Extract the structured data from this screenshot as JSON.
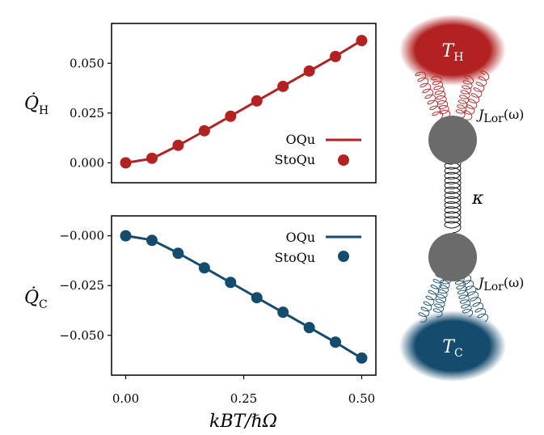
{
  "chart_data": [
    {
      "type": "line",
      "ylabel": "Q̇",
      "ylabel_sub": "H",
      "ylim": [
        -0.01,
        0.07
      ],
      "xlim": [
        -0.03,
        0.53
      ],
      "yticks": [
        0.0,
        0.025,
        0.05
      ],
      "ytick_labels": [
        "0.000",
        "0.025",
        "0.050"
      ],
      "color": "#b22222",
      "series": [
        {
          "name": "OQu",
          "kind": "line",
          "x": [
            0.0,
            0.0556,
            0.1111,
            0.1667,
            0.2222,
            0.2778,
            0.3333,
            0.3889,
            0.4444,
            0.5
          ],
          "values": [
            0.0,
            0.0021,
            0.0087,
            0.016,
            0.0235,
            0.031,
            0.0385,
            0.046,
            0.0535,
            0.0615
          ]
        },
        {
          "name": "StoQu",
          "kind": "marker",
          "x": [
            0.0,
            0.0556,
            0.1111,
            0.1667,
            0.2222,
            0.2778,
            0.3333,
            0.3889,
            0.4444,
            0.5
          ],
          "values": [
            0.0,
            0.0023,
            0.0088,
            0.0161,
            0.0234,
            0.0311,
            0.0384,
            0.0461,
            0.0534,
            0.0614
          ]
        }
      ],
      "legend": "right"
    },
    {
      "type": "line",
      "ylabel": "Q̇",
      "ylabel_sub": "C",
      "ylim": [
        -0.07,
        0.01
      ],
      "xlim": [
        -0.03,
        0.53
      ],
      "yticks": [
        0.0,
        -0.025,
        -0.05
      ],
      "ytick_labels": [
        "−0.000",
        "−0.025",
        "−0.050"
      ],
      "xticks": [
        0.0,
        0.25,
        0.5
      ],
      "xtick_labels": [
        "0.00",
        "0.25",
        "0.50"
      ],
      "xlabel": "kBT/ℏΩ",
      "color": "#154c6e",
      "series": [
        {
          "name": "OQu",
          "kind": "line",
          "x": [
            0.0,
            0.0556,
            0.1111,
            0.1667,
            0.2222,
            0.2778,
            0.3333,
            0.3889,
            0.4444,
            0.5
          ],
          "values": [
            0.0,
            -0.0021,
            -0.0087,
            -0.016,
            -0.0235,
            -0.031,
            -0.0385,
            -0.046,
            -0.0535,
            -0.0615
          ]
        },
        {
          "name": "StoQu",
          "kind": "marker",
          "x": [
            0.0,
            0.0556,
            0.1111,
            0.1667,
            0.2222,
            0.2778,
            0.3333,
            0.3889,
            0.4444,
            0.5
          ],
          "values": [
            0.0,
            -0.0023,
            -0.0088,
            -0.0161,
            -0.0234,
            -0.0311,
            -0.0384,
            -0.0461,
            -0.0534,
            -0.0614
          ]
        }
      ],
      "legend": "top-right"
    }
  ],
  "diagram": {
    "hot_bath": {
      "symbol": "T",
      "sub": "H",
      "color": "#b22222"
    },
    "cold_bath": {
      "symbol": "T",
      "sub": "C",
      "color": "#154c6e"
    },
    "coupling_top": {
      "symbol": "J",
      "sub": "Lor",
      "arg": "(ω)"
    },
    "coupling_bottom": {
      "symbol": "J",
      "sub": "Lor",
      "arg": "(ω)"
    },
    "spring_label": "κ",
    "mass_color": "#6b6b6b"
  }
}
